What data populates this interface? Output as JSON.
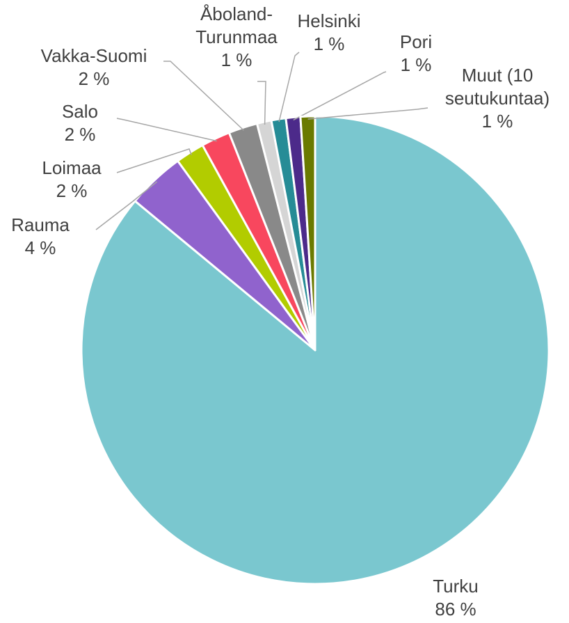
{
  "chart_data": {
    "type": "pie",
    "categories": [
      "Turku",
      "Rauma",
      "Loimaa",
      "Salo",
      "Vakka-Suomi",
      "Åboland-Turunmaa",
      "Helsinki",
      "Pori",
      "Muut (10 seutukuntaa)"
    ],
    "values": [
      86,
      4,
      2,
      2,
      2,
      1,
      1,
      1,
      1
    ],
    "value_labels": [
      "86 %",
      "4 %",
      "2 %",
      "2 %",
      "2 %",
      "1 %",
      "1 %",
      "1 %",
      "1 %"
    ],
    "colors": [
      "#7ac7cf",
      "#9063cd",
      "#b2cc00",
      "#f8475e",
      "#898989",
      "#d5d5d5",
      "#268c96",
      "#4c2a8a",
      "#6a7a00"
    ]
  }
}
